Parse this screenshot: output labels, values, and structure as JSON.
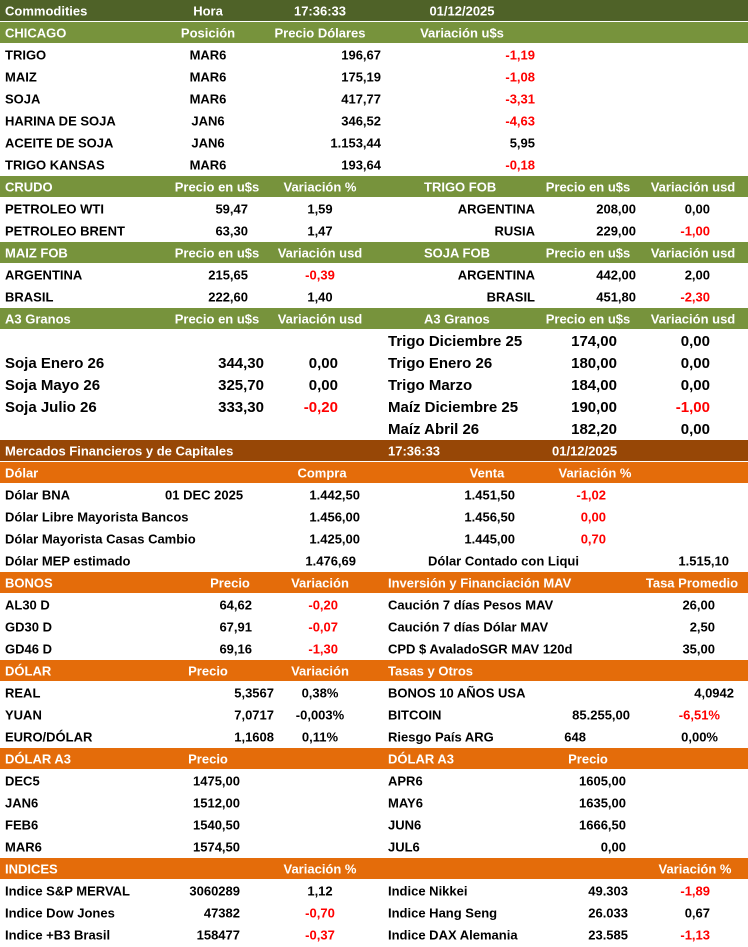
{
  "rows": [
    [
      "Commodities",
      "Hora",
      "17:36:33",
      "01/12/2025"
    ],
    [
      "CHICAGO",
      "Posición",
      "Precio Dólares",
      "Variación u$s"
    ],
    [
      "TRIGO",
      "MAR6",
      "196,67",
      "-1,19"
    ],
    [
      "MAIZ",
      "MAR6",
      "175,19",
      "-1,08"
    ],
    [
      "SOJA",
      "MAR6",
      "417,77",
      "-3,31"
    ],
    [
      "HARINA DE SOJA",
      "JAN6",
      "346,52",
      "-4,63"
    ],
    [
      "ACEITE DE SOJA",
      "JAN6",
      "1.153,44",
      "5,95"
    ],
    [
      "TRIGO KANSAS",
      "MAR6",
      "193,64",
      "-0,18"
    ],
    [
      "CRUDO",
      "Precio en u$s",
      "Variación %",
      "TRIGO FOB",
      "Precio en u$s",
      "Variación usd"
    ],
    [
      "PETROLEO WTI",
      "59,47",
      "1,59",
      "ARGENTINA",
      "208,00",
      "0,00"
    ],
    [
      "PETROLEO BRENT",
      "63,30",
      "1,47",
      "RUSIA",
      "229,00",
      "-1,00"
    ],
    [
      "MAIZ FOB",
      "Precio en u$s",
      "Variación usd",
      "SOJA FOB",
      "Precio en u$s",
      "Variación usd"
    ],
    [
      "ARGENTINA",
      "215,65",
      "-0,39",
      "ARGENTINA",
      "442,00",
      "2,00"
    ],
    [
      "BRASIL",
      "222,60",
      "1,40",
      "BRASIL",
      "451,80",
      "-2,30"
    ],
    [
      "A3 Granos",
      "Precio en u$s",
      "Variación usd",
      "A3 Granos",
      "Precio en u$s",
      "Variación usd"
    ],
    [
      "Trigo Diciembre 25",
      "174,00",
      "0,00"
    ],
    [
      "Soja Enero 26",
      "344,30",
      "0,00",
      "Trigo Enero 26",
      "180,00",
      "0,00"
    ],
    [
      "Soja Mayo 26",
      "325,70",
      "0,00",
      "Trigo Marzo",
      "184,00",
      "0,00"
    ],
    [
      "Soja Julio 26",
      "333,30",
      "-0,20",
      "Maíz Diciembre 25",
      "190,00",
      "-1,00"
    ],
    [
      "Maíz Abril 26",
      "182,20",
      "0,00"
    ],
    [
      "Mercados Financieros y de Capitales",
      "17:36:33",
      "01/12/2025"
    ],
    [
      "Dólar",
      "Compra",
      "Venta",
      "Variación %"
    ],
    [
      "Dólar BNA",
      "01 DEC 2025",
      "1.442,50",
      "1.451,50",
      "-1,02"
    ],
    [
      "Dólar Libre Mayorista Bancos",
      "1.456,00",
      "1.456,50",
      "0,00"
    ],
    [
      "Dólar Mayorista Casas Cambio",
      "1.425,00",
      "1.445,00",
      "0,70"
    ],
    [
      "Dólar MEP estimado",
      "1.476,69",
      "Dólar Contado con Liqui",
      "1.515,10"
    ],
    [
      "BONOS",
      "Precio",
      "Variación",
      "Inversión y Financiación MAV",
      "Tasa Promedio"
    ],
    [
      "AL30 D",
      "64,62",
      "-0,20",
      "Caución 7 días Pesos MAV",
      "26,00"
    ],
    [
      "GD30 D",
      "67,91",
      "-0,07",
      "Caución 7 días Dólar MAV",
      "2,50"
    ],
    [
      "GD46 D",
      "69,16",
      "-1,30",
      "CPD $ AvaladoSGR  MAV 120d",
      "35,00"
    ],
    [
      "DÓLAR",
      "Precio",
      "Variación",
      "Tasas y Otros"
    ],
    [
      "REAL",
      "5,3567",
      "0,38%",
      "BONOS 10 AÑOS USA",
      "4,0942"
    ],
    [
      "YUAN",
      "7,0717",
      "-0,003%",
      "BITCOIN",
      "85.255,00",
      "-6,51%"
    ],
    [
      "EURO/DÓLAR",
      "1,1608",
      "0,11%",
      "Riesgo País ARG",
      "648",
      "0,00%"
    ],
    [
      "DÓLAR A3",
      "Precio",
      "DÓLAR A3",
      "Precio"
    ],
    [
      "DEC5",
      "1475,00",
      "APR6",
      "1605,00"
    ],
    [
      "JAN6",
      "1512,00",
      "MAY6",
      "1635,00"
    ],
    [
      "FEB6",
      "1540,50",
      "JUN6",
      "1666,50"
    ],
    [
      "MAR6",
      "1574,50",
      "JUL6",
      "0,00"
    ],
    [
      "INDICES",
      "Variación %",
      "Variación %"
    ],
    [
      "Indice S&P MERVAL",
      "3060289",
      "1,12",
      "Indice Nikkei",
      "49.303",
      "-1,89"
    ],
    [
      "Indice Dow Jones",
      "47382",
      "-0,70",
      "Indice Hang Seng",
      "26.033",
      "0,67"
    ],
    [
      "Indice +B3 Brasil",
      "158477",
      "-0,37",
      "Indice DAX Alemania",
      "23.585",
      "-1,13"
    ]
  ]
}
